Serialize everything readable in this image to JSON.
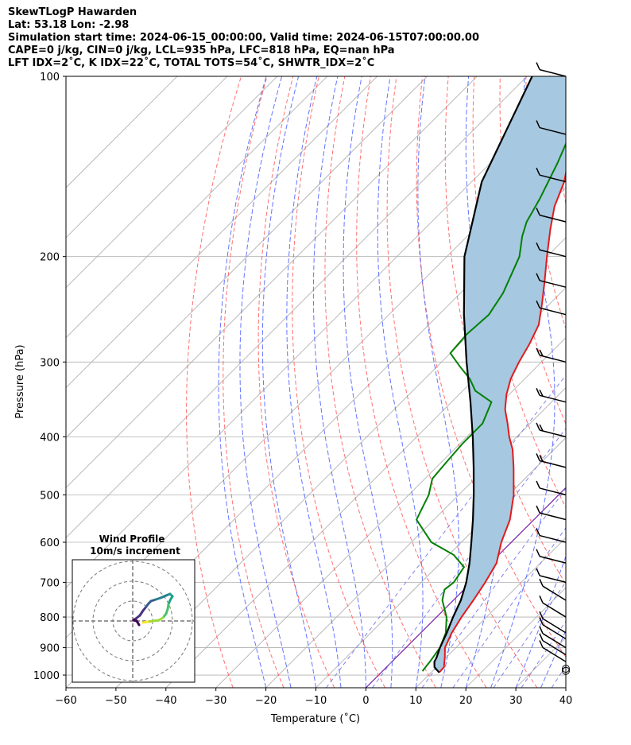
{
  "header": {
    "line1": "SkewTLogP Hawarden",
    "line2": "Lat: 53.18   Lon: -2.98",
    "line3": "Simulation start time: 2024-06-15_00:00:00, Valid time: 2024-06-15T07:00:00.00",
    "line4": "CAPE=0 j/kg, CIN=0 j/kg, LCL=935 hPa, LFC=818 hPa, EQ=nan hPa",
    "line5": "LFT IDX=2˚C, K IDX=22˚C, TOTAL TOTS=54˚C, SHWTR_IDX=2˚C"
  },
  "chart_data": {
    "type": "line",
    "subtype": "skew-t log-p",
    "xlabel": "Temperature (˚C)",
    "ylabel": "Pressure (hPa)",
    "xlim": [
      -60,
      40
    ],
    "ylim_hpa": [
      1050,
      100
    ],
    "x_ticks": [
      "−60",
      "−50",
      "−40",
      "−30",
      "−20",
      "−10",
      "0",
      "10",
      "20",
      "30",
      "40"
    ],
    "x_tick_values": [
      -60,
      -50,
      -40,
      -30,
      -20,
      -10,
      0,
      10,
      20,
      30,
      40
    ],
    "y_ticks": [
      "100",
      "200",
      "300",
      "400",
      "500",
      "600",
      "700",
      "800",
      "900",
      "1000"
    ],
    "y_tick_values": [
      100,
      200,
      300,
      400,
      500,
      600,
      700,
      800,
      900,
      1000
    ],
    "colors": {
      "temperature": "#e31a1c",
      "dewpoint": "#008000",
      "parcel": "#000000",
      "cape_fill": "#a6c8e0",
      "dry_adiabat": "#ff6060",
      "moist_adiabat": "#4a5cff",
      "mixing_ratio": "#7777ee",
      "isotherm": "#aaaaaa",
      "isobar": "#b0b0b0",
      "freezing": "#7722aa"
    },
    "series": [
      {
        "name": "Temperature",
        "points": [
          [
            990,
            11.6
          ],
          [
            970,
            11.5
          ],
          [
            950,
            10.5
          ],
          [
            930,
            9.5
          ],
          [
            900,
            7.8
          ],
          [
            850,
            6.2
          ],
          [
            800,
            5.0
          ],
          [
            750,
            4.0
          ],
          [
            700,
            2.8
          ],
          [
            650,
            1.2
          ],
          [
            600,
            -2.0
          ],
          [
            550,
            -4.8
          ],
          [
            500,
            -9.0
          ],
          [
            450,
            -14.5
          ],
          [
            420,
            -18.3
          ],
          [
            400,
            -21.5
          ],
          [
            380,
            -24.5
          ],
          [
            360,
            -27.8
          ],
          [
            340,
            -30.5
          ],
          [
            320,
            -32.8
          ],
          [
            300,
            -34.5
          ],
          [
            280,
            -36.0
          ],
          [
            260,
            -38.0
          ],
          [
            240,
            -41.5
          ],
          [
            220,
            -45.5
          ],
          [
            200,
            -50.0
          ],
          [
            180,
            -54.8
          ],
          [
            165,
            -58.5
          ],
          [
            150,
            -61.5
          ],
          [
            130,
            -67.5
          ],
          [
            115,
            -73.0
          ],
          [
            100,
            -78.5
          ]
        ]
      },
      {
        "name": "Dewpoint",
        "points": [
          [
            985,
            8.0
          ],
          [
            970,
            7.8
          ],
          [
            950,
            7.6
          ],
          [
            900,
            6.8
          ],
          [
            850,
            5.0
          ],
          [
            800,
            2.0
          ],
          [
            750,
            -2.2
          ],
          [
            720,
            -3.9
          ],
          [
            700,
            -3.5
          ],
          [
            660,
            -4.5
          ],
          [
            630,
            -9.0
          ],
          [
            600,
            -16.0
          ],
          [
            550,
            -23.5
          ],
          [
            500,
            -26.0
          ],
          [
            470,
            -28.5
          ],
          [
            440,
            -29.0
          ],
          [
            410,
            -29.5
          ],
          [
            380,
            -29.5
          ],
          [
            350,
            -32.0
          ],
          [
            335,
            -37.5
          ],
          [
            320,
            -41.0
          ],
          [
            305,
            -45.5
          ],
          [
            290,
            -50.0
          ],
          [
            270,
            -50.5
          ],
          [
            250,
            -50.0
          ],
          [
            230,
            -51.5
          ],
          [
            200,
            -55.5
          ],
          [
            185,
            -59.0
          ],
          [
            175,
            -61.0
          ],
          [
            160,
            -63.0
          ],
          [
            140,
            -66.5
          ],
          [
            120,
            -71.0
          ],
          [
            100,
            -76.0
          ]
        ]
      },
      {
        "name": "Parcel",
        "points": [
          [
            990,
            11.6
          ],
          [
            970,
            9.6
          ],
          [
            950,
            8.5
          ],
          [
            935,
            8.1
          ],
          [
            900,
            6.8
          ],
          [
            850,
            5.2
          ],
          [
            800,
            3.3
          ],
          [
            750,
            1.5
          ],
          [
            700,
            -1.0
          ],
          [
            650,
            -4.2
          ],
          [
            600,
            -8.0
          ],
          [
            550,
            -12.2
          ],
          [
            500,
            -17.0
          ],
          [
            450,
            -22.5
          ],
          [
            400,
            -28.8
          ],
          [
            350,
            -36.2
          ],
          [
            300,
            -45.0
          ],
          [
            250,
            -55.0
          ],
          [
            200,
            -66.5
          ],
          [
            150,
            -78.0
          ],
          [
            100,
            -89.0
          ]
        ]
      }
    ],
    "wind_barbs_hpa": [
      984,
      976,
      950,
      925,
      900,
      870,
      850,
      800,
      750,
      700,
      650,
      600,
      550,
      500,
      450,
      400,
      350,
      300,
      250,
      225,
      200,
      175,
      150,
      125,
      100
    ],
    "wind_profile_inset": {
      "title": "Wind Profile",
      "subtitle": "10m/s increment"
    }
  }
}
